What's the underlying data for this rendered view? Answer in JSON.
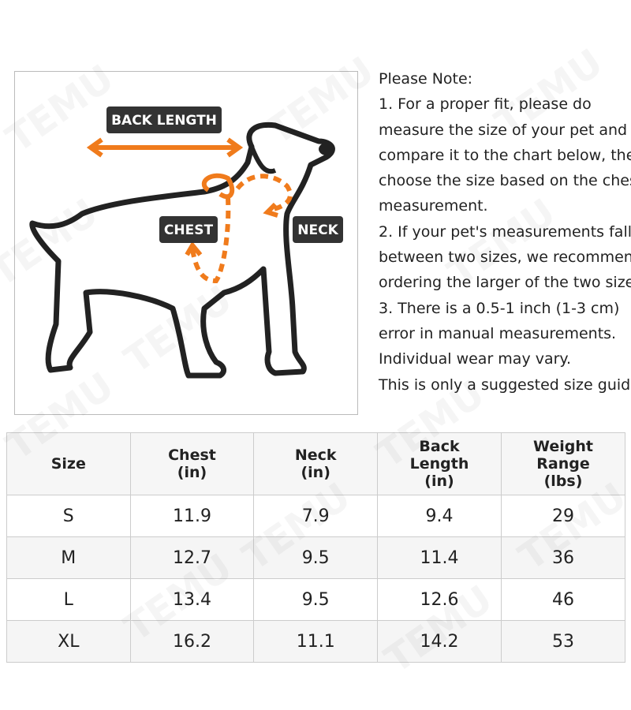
{
  "watermark": "TEMU",
  "figure": {
    "back_length": "BACK LENGTH",
    "chest": "CHEST",
    "neck": "NECK"
  },
  "notes": {
    "lines": [
      "Please Note:",
      "1. For a proper fit, please do",
      "measure the size of your pet and",
      "compare it to the chart below, then",
      "choose the size based on the chest",
      "measurement.",
      "2. If your pet's measurements fall",
      "between two sizes, we recommend",
      "ordering the larger of the two sizes.",
      "3. There is a 0.5-1 inch (1-3 cm)",
      "error in manual measurements.",
      "Individual wear may vary.",
      "This is only a suggested size guide."
    ]
  },
  "table": {
    "header": [
      [
        "Size"
      ],
      [
        "Chest",
        "(in)"
      ],
      [
        "Neck",
        "(in)"
      ],
      [
        "Back",
        "Length",
        "(in)"
      ],
      [
        "Weight",
        "Range",
        "(lbs)"
      ]
    ],
    "rows": [
      [
        "S",
        11.9,
        7.9,
        9.4,
        29
      ],
      [
        "M",
        12.7,
        9.5,
        11.4,
        36
      ],
      [
        "L",
        13.4,
        9.5,
        12.6,
        46
      ],
      [
        "XL",
        16.2,
        11.1,
        14.2,
        53
      ]
    ]
  }
}
